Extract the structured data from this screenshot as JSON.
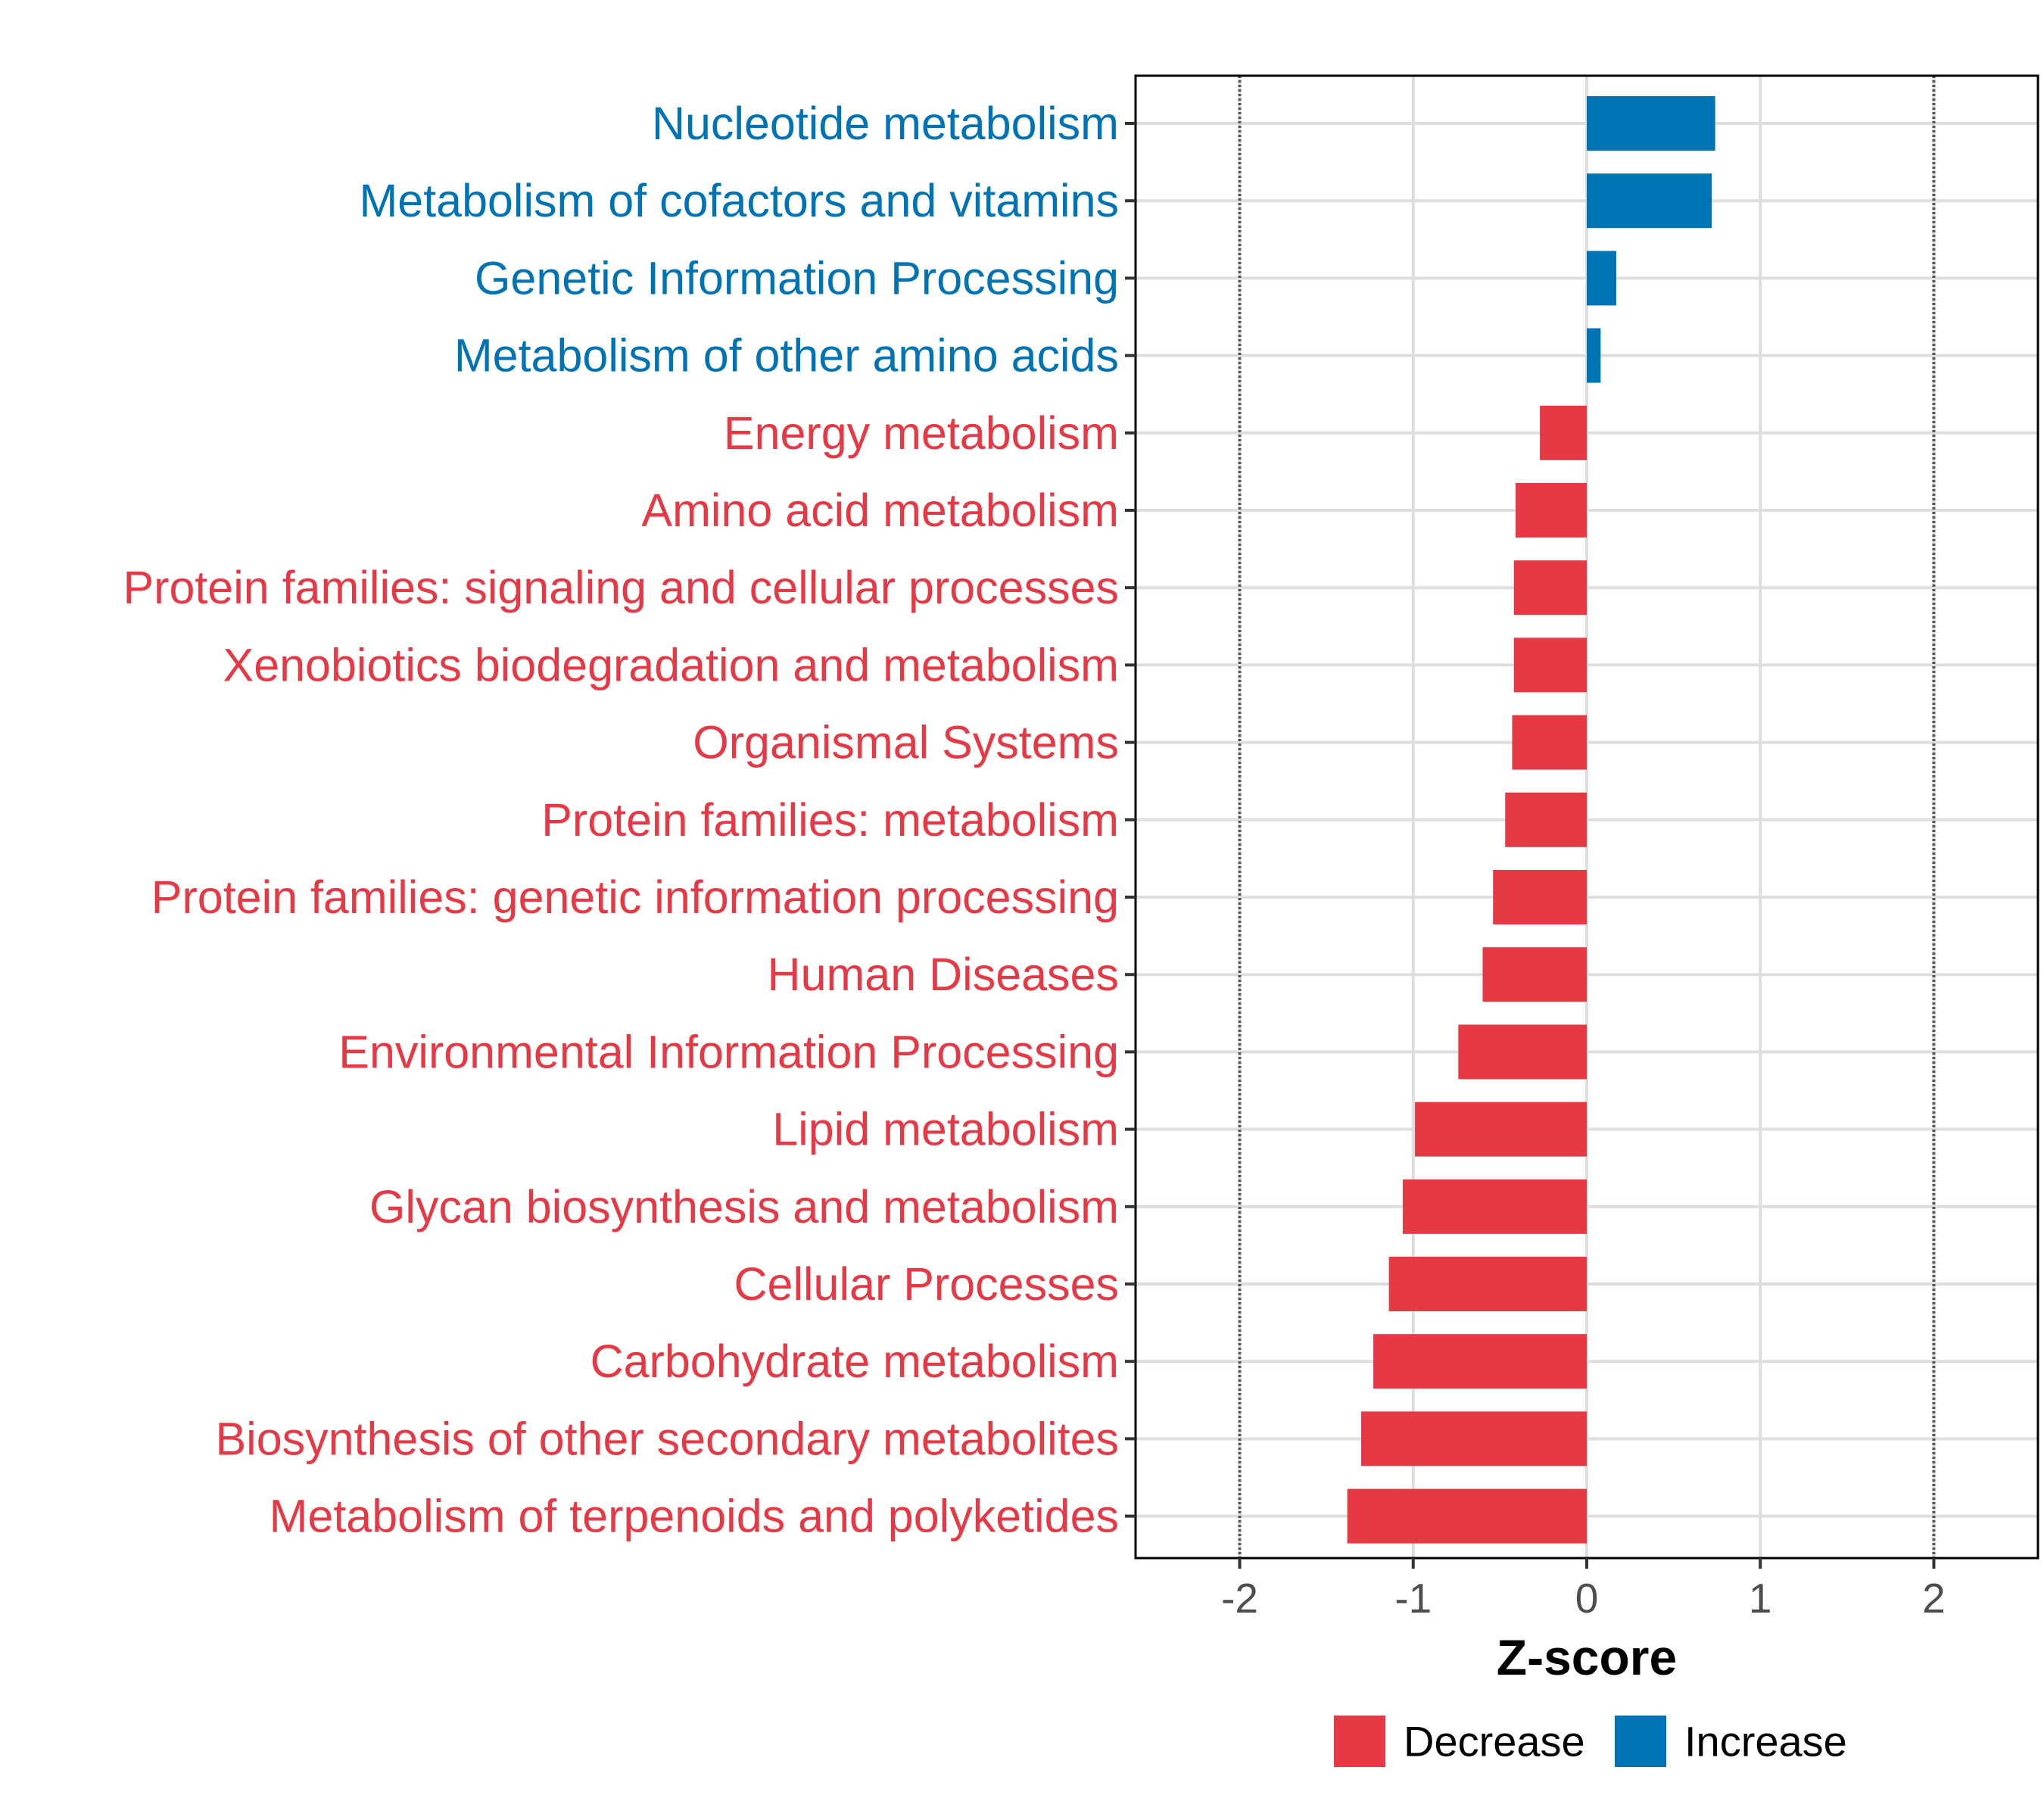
{
  "colors": {
    "increase": "#0073B5",
    "decrease": "#E63946",
    "grid": "#DEDEDE",
    "reference_line": "#555555",
    "axis": "#000000"
  },
  "chart_data": {
    "type": "bar",
    "orientation": "horizontal",
    "title": "",
    "xlabel": "Z-score",
    "ylabel": "",
    "xlim": [
      -2.6,
      2.6
    ],
    "x_ticks": [
      -2,
      -1,
      0,
      1,
      2
    ],
    "x_tick_labels": [
      "-2",
      "-1",
      "0",
      "1",
      "2"
    ],
    "reference_lines": [
      -2,
      2
    ],
    "grid": true,
    "legend_position": "bottom",
    "categories": [
      "Nucleotide metabolism",
      "Metabolism of cofactors and vitamins",
      "Genetic Information Processing",
      "Metabolism of other amino acids",
      "Energy metabolism",
      "Amino acid metabolism",
      "Protein families: signaling and cellular processes",
      "Xenobiotics biodegradation and metabolism",
      "Organismal Systems",
      "Protein families: metabolism",
      "Protein families: genetic information processing",
      "Human Diseases",
      "Environmental Information Processing",
      "Lipid metabolism",
      "Glycan biosynthesis and metabolism",
      "Cellular Processes",
      "Carbohydrate metabolism",
      "Biosynthesis of other secondary metabolites",
      "Metabolism of terpenoids and polyketides"
    ],
    "values": [
      0.74,
      0.72,
      0.17,
      0.08,
      -0.27,
      -0.41,
      -0.42,
      -0.42,
      -0.43,
      -0.47,
      -0.54,
      -0.6,
      -0.74,
      -0.99,
      -1.06,
      -1.14,
      -1.23,
      -1.3,
      -1.38
    ],
    "groups": [
      "Increase",
      "Increase",
      "Increase",
      "Increase",
      "Decrease",
      "Decrease",
      "Decrease",
      "Decrease",
      "Decrease",
      "Decrease",
      "Decrease",
      "Decrease",
      "Decrease",
      "Decrease",
      "Decrease",
      "Decrease",
      "Decrease",
      "Decrease",
      "Decrease"
    ],
    "legend": [
      {
        "label": "Decrease",
        "color": "#E63946"
      },
      {
        "label": "Increase",
        "color": "#0073B5"
      }
    ]
  }
}
